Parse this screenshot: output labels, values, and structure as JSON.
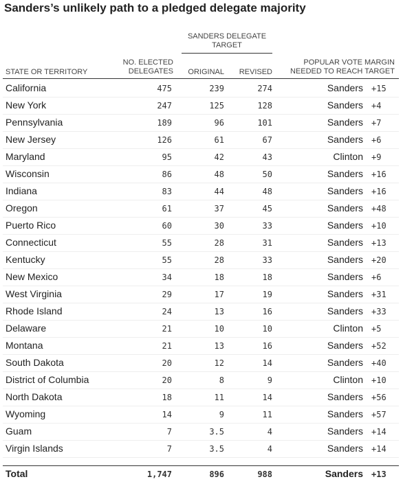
{
  "title": "Sanders’s unlikely path to a pledged delegate majority",
  "header": {
    "group": "SANDERS DELEGATE TARGET",
    "state": "STATE OR TERRITORY",
    "elected": "NO. ELECTED DELEGATES",
    "original": "ORIGINAL",
    "revised": "REVISED",
    "margin": "POPULAR VOTE MARGIN NEEDED TO REACH TARGET"
  },
  "rows": [
    [
      "California",
      "475",
      "239",
      "274",
      "Sanders",
      "+15"
    ],
    [
      "New York",
      "247",
      "125",
      "128",
      "Sanders",
      "+4"
    ],
    [
      "Pennsylvania",
      "189",
      "96",
      "101",
      "Sanders",
      "+7"
    ],
    [
      "New Jersey",
      "126",
      "61",
      "67",
      "Sanders",
      "+6"
    ],
    [
      "Maryland",
      "95",
      "42",
      "43",
      "Clinton",
      "+9"
    ],
    [
      "Wisconsin",
      "86",
      "48",
      "50",
      "Sanders",
      "+16"
    ],
    [
      "Indiana",
      "83",
      "44",
      "48",
      "Sanders",
      "+16"
    ],
    [
      "Oregon",
      "61",
      "37",
      "45",
      "Sanders",
      "+48"
    ],
    [
      "Puerto Rico",
      "60",
      "30",
      "33",
      "Sanders",
      "+10"
    ],
    [
      "Connecticut",
      "55",
      "28",
      "31",
      "Sanders",
      "+13"
    ],
    [
      "Kentucky",
      "55",
      "28",
      "33",
      "Sanders",
      "+20"
    ],
    [
      "New Mexico",
      "34",
      "18",
      "18",
      "Sanders",
      "+6"
    ],
    [
      "West Virginia",
      "29",
      "17",
      "19",
      "Sanders",
      "+31"
    ],
    [
      "Rhode Island",
      "24",
      "13",
      "16",
      "Sanders",
      "+33"
    ],
    [
      "Delaware",
      "21",
      "10",
      "10",
      "Clinton",
      "+5"
    ],
    [
      "Montana",
      "21",
      "13",
      "16",
      "Sanders",
      "+52"
    ],
    [
      "South Dakota",
      "20",
      "12",
      "14",
      "Sanders",
      "+40"
    ],
    [
      "District of Columbia",
      "20",
      "8",
      "9",
      "Clinton",
      "+10"
    ],
    [
      "North Dakota",
      "18",
      "11",
      "14",
      "Sanders",
      "+56"
    ],
    [
      "Wyoming",
      "14",
      "9",
      "11",
      "Sanders",
      "+57"
    ],
    [
      "Guam",
      "7",
      "3.5",
      "4",
      "Sanders",
      "+14"
    ],
    [
      "Virgin Islands",
      "7",
      "3.5",
      "4",
      "Sanders",
      "+14"
    ]
  ],
  "total": [
    "Total",
    "1,747",
    "896",
    "988",
    "Sanders",
    "+13"
  ]
}
